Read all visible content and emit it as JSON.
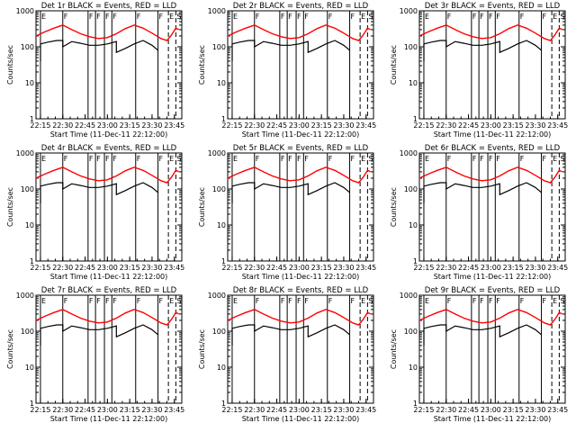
{
  "figure": {
    "panels": [
      {
        "title": "Det  1r  BLACK = Events, RED = LLD"
      },
      {
        "title": "Det  2r  BLACK = Events, RED = LLD"
      },
      {
        "title": "Det  3r  BLACK = Events, RED = LLD"
      },
      {
        "title": "Det  4r  BLACK = Events, RED = LLD"
      },
      {
        "title": "Det  5r  BLACK = Events, RED = LLD"
      },
      {
        "title": "Det  6r  BLACK = Events, RED = LLD"
      },
      {
        "title": "Det  7r  BLACK = Events, RED = LLD"
      },
      {
        "title": "Det  8r  BLACK = Events, RED = LLD"
      },
      {
        "title": "Det  9r  BLACK = Events, RED = LLD"
      }
    ]
  },
  "chart_data": {
    "type": "line",
    "layout": "3x3 grid",
    "ylabel": "Counts/sec",
    "xlabel": "Start Time (11-Dec-11 22:12:00)",
    "yscale": "log",
    "ylim": [
      1,
      1000
    ],
    "yticks": [
      1,
      10,
      100,
      1000
    ],
    "ytick_labels": [
      "1",
      "10",
      "100",
      "1000"
    ],
    "xlim_minutes": [
      0,
      98
    ],
    "xticks_minutes": [
      3,
      18,
      33,
      48,
      63,
      78,
      93
    ],
    "xtick_labels": [
      "22:15",
      "22:30",
      "22:45",
      "23:00",
      "23:15",
      "23:30",
      "23:45"
    ],
    "event_markers": [
      {
        "label": "E",
        "minute": 3,
        "style": "solid"
      },
      {
        "label": "F",
        "minute": 18,
        "style": "solid"
      },
      {
        "label": "F",
        "minute": 35,
        "style": "solid"
      },
      {
        "label": "F",
        "minute": 40,
        "style": "solid"
      },
      {
        "label": "F",
        "minute": 46,
        "style": "solid"
      },
      {
        "label": "F",
        "minute": 51,
        "style": "solid"
      },
      {
        "label": "F",
        "minute": 67,
        "style": "solid"
      },
      {
        "label": "F",
        "minute": 82,
        "style": "solid"
      },
      {
        "label": "E",
        "minute": 89,
        "style": "dashed"
      },
      {
        "label": "S",
        "minute": 94,
        "style": "dashed"
      }
    ],
    "series": [
      {
        "name": "LLD",
        "color": "#ff0000",
        "x": [
          0,
          6,
          12,
          18,
          24,
          30,
          36,
          42,
          48,
          54,
          60,
          66,
          72,
          78,
          84,
          88,
          91,
          94,
          96
        ],
        "y": [
          200,
          260,
          330,
          400,
          300,
          230,
          190,
          170,
          180,
          230,
          320,
          400,
          330,
          240,
          170,
          150,
          210,
          330,
          300
        ]
      },
      {
        "name": "Events",
        "color": "#000000",
        "x": [
          3,
          3,
          8,
          14,
          18,
          18,
          24,
          30,
          36,
          42,
          48,
          54,
          54,
          60,
          66,
          72,
          78,
          82
        ],
        "y": [
          40,
          120,
          135,
          150,
          150,
          100,
          140,
          125,
          110,
          110,
          120,
          140,
          70,
          90,
          120,
          150,
          110,
          80
        ]
      }
    ]
  }
}
